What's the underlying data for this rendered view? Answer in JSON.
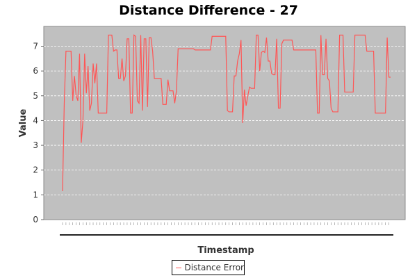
{
  "chart_data": {
    "type": "line",
    "title": "Distance Difference - 27",
    "xlabel": "Timestamp",
    "ylabel": "Value",
    "ylim": [
      0,
      7.8
    ],
    "yticks": [
      0,
      1,
      2,
      3,
      4,
      5,
      6,
      7
    ],
    "grid": true,
    "legend_position": "bottom-center",
    "colors": {
      "plot_bg": "#c0c0c0",
      "series": "#ff5555",
      "grid": "#ffffff"
    },
    "series": [
      {
        "name": "Distance Error",
        "values": [
          1.15,
          4.7,
          6.8,
          6.8,
          6.8,
          6.8,
          4.8,
          5.8,
          5.0,
          4.8,
          6.7,
          3.1,
          4.0,
          6.7,
          5.1,
          6.2,
          4.4,
          4.7,
          6.3,
          5.5,
          6.3,
          4.3,
          4.3,
          4.3,
          4.3,
          4.3,
          4.3,
          7.45,
          7.45,
          7.45,
          6.8,
          6.85,
          6.85,
          5.7,
          5.7,
          6.5,
          5.6,
          5.8,
          7.3,
          7.3,
          4.3,
          4.3,
          7.45,
          7.4,
          4.8,
          4.7,
          7.45,
          4.4,
          7.3,
          7.3,
          4.55,
          7.35,
          7.35,
          6.8,
          5.7,
          5.7,
          5.7,
          5.7,
          5.7,
          4.65,
          4.65,
          4.65,
          5.65,
          5.2,
          5.2,
          5.2,
          4.7,
          5.2,
          6.9,
          6.9,
          6.9,
          6.9,
          6.9,
          6.9,
          6.9,
          6.9,
          6.9,
          6.9,
          6.85,
          6.85,
          6.85,
          6.85,
          6.85,
          6.85,
          6.85,
          6.85,
          6.85,
          6.85,
          7.4,
          7.4,
          7.4,
          7.4,
          7.4,
          7.4,
          7.4,
          7.4,
          7.4,
          4.4,
          4.35,
          4.35,
          4.35,
          5.8,
          5.8,
          6.4,
          6.7,
          7.25,
          3.9,
          5.25,
          4.6,
          5.0,
          5.35,
          5.3,
          5.3,
          5.3,
          7.45,
          7.45,
          6.0,
          6.75,
          6.8,
          6.75,
          7.35,
          6.4,
          6.4,
          5.9,
          5.85,
          5.85,
          7.3,
          4.5,
          4.5,
          7.1,
          7.25,
          7.25,
          7.25,
          7.25,
          7.25,
          7.25,
          6.85,
          6.85,
          6.85,
          6.85,
          6.85,
          6.85,
          6.85,
          6.85,
          6.85,
          6.85,
          6.85,
          6.85,
          6.85,
          6.85,
          4.3,
          4.3,
          7.45,
          5.85,
          5.85,
          7.3,
          5.7,
          5.6,
          4.5,
          4.35,
          4.35,
          4.35,
          4.35,
          7.45,
          7.45,
          7.45,
          5.15,
          5.15,
          5.15,
          5.15,
          5.15,
          5.15,
          7.45,
          7.45,
          7.45,
          7.45,
          7.45,
          7.45,
          7.45,
          6.8,
          6.8,
          6.8,
          6.8,
          6.8,
          4.3,
          4.3,
          4.3,
          4.3,
          4.3,
          4.3,
          4.3,
          7.35,
          5.75,
          5.75
        ]
      }
    ]
  }
}
